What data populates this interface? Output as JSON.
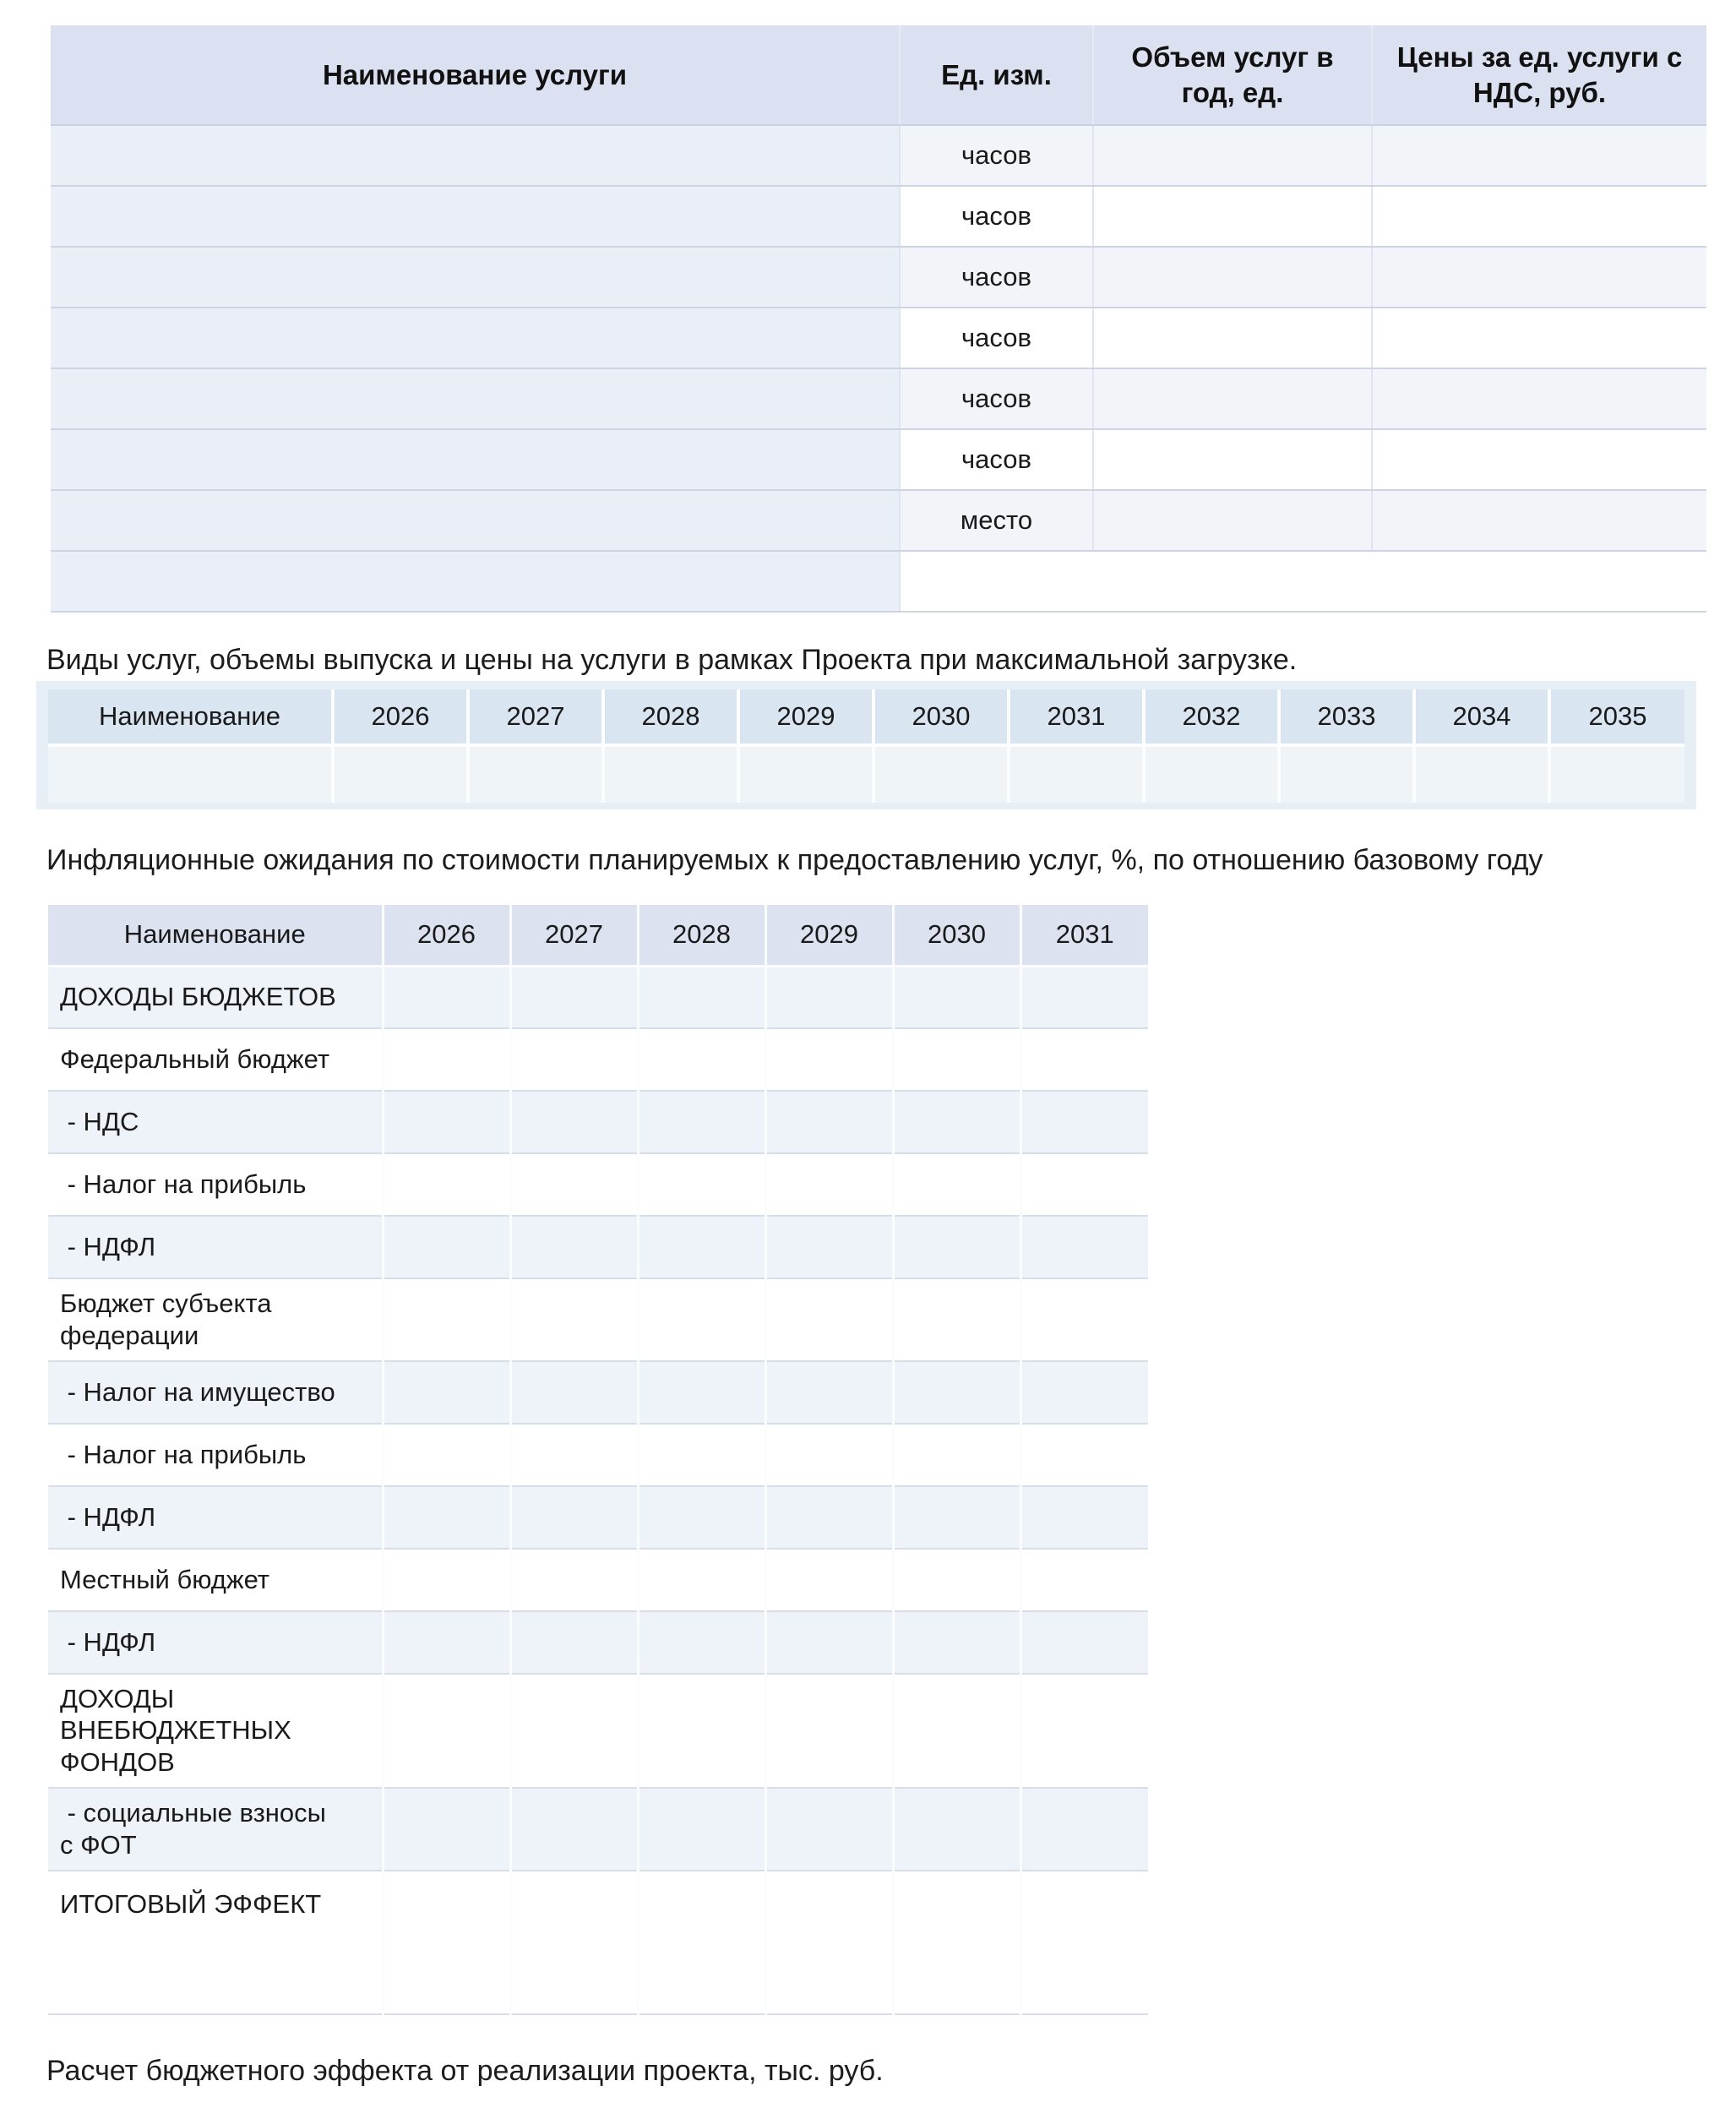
{
  "colors": {
    "table1_header_bg": "#dbe1f0",
    "table1_first_col_bg": "#e9eef7",
    "table1_alt_row_bg": "#f1f5fa",
    "table2_header_bg": "#d9e5f1",
    "table2_body_bg": "#eff4f9",
    "table2_frame_bg": "#e6eff6",
    "table3_header_bg": "#dce2f0",
    "table3_alt_row_bg": "#eef2f9",
    "row_border": "#cdd5e4",
    "text": "#1a1a1a"
  },
  "captions": {
    "services": "Виды услуг, объемы выпуска и цены на услуги в рамках Проекта при максимальной загрузке.",
    "inflation": "Инфляционные ожидания по стоимости планируемых к предоставлению услуг, %, по отношению базовому году",
    "budget": "Расчет бюджетного эффекта от реализации проекта, тыс. руб."
  },
  "table1": {
    "headers": [
      "Наименование услуги",
      "Ед. изм.",
      "Объем услуг в год, ед.",
      "Цены за ед. услуги с НДС, руб."
    ],
    "rows": [
      {
        "name": "",
        "unit": "часов",
        "volume": "",
        "price": ""
      },
      {
        "name": "",
        "unit": "часов",
        "volume": "",
        "price": ""
      },
      {
        "name": "",
        "unit": "часов",
        "volume": "",
        "price": ""
      },
      {
        "name": "",
        "unit": "часов",
        "volume": "",
        "price": ""
      },
      {
        "name": "",
        "unit": "часов",
        "volume": "",
        "price": ""
      },
      {
        "name": "",
        "unit": "часов",
        "volume": "",
        "price": ""
      },
      {
        "name": "",
        "unit": "место",
        "volume": "",
        "price": ""
      }
    ],
    "last_row": {
      "name": "",
      "merged": ""
    }
  },
  "table2": {
    "name_header": "Наименование",
    "years": [
      "2026",
      "2027",
      "2028",
      "2029",
      "2030",
      "2031",
      "2032",
      "2033",
      "2034",
      "2035"
    ],
    "row": {
      "name": "",
      "values": [
        "",
        "",
        "",
        "",
        "",
        "",
        "",
        "",
        "",
        ""
      ]
    }
  },
  "table3": {
    "name_header": "Наименование",
    "years": [
      "2026",
      "2027",
      "2028",
      "2029",
      "2030",
      "2031"
    ],
    "rows": [
      {
        "label": "ДОХОДЫ БЮДЖЕТОВ",
        "values": [
          "",
          "",
          "",
          "",
          "",
          ""
        ]
      },
      {
        "label": "Федеральный бюджет",
        "values": [
          "",
          "",
          "",
          "",
          "",
          ""
        ]
      },
      {
        "label": " - НДС",
        "values": [
          "",
          "",
          "",
          "",
          "",
          ""
        ]
      },
      {
        "label": " - Налог на прибыль",
        "values": [
          "",
          "",
          "",
          "",
          "",
          ""
        ]
      },
      {
        "label": " - НДФЛ",
        "values": [
          "",
          "",
          "",
          "",
          "",
          ""
        ]
      },
      {
        "label": "Бюджет субъекта\nфедерации",
        "values": [
          "",
          "",
          "",
          "",
          "",
          ""
        ]
      },
      {
        "label": " - Налог на имущество",
        "values": [
          "",
          "",
          "",
          "",
          "",
          ""
        ]
      },
      {
        "label": " - Налог на прибыль",
        "values": [
          "",
          "",
          "",
          "",
          "",
          ""
        ]
      },
      {
        "label": " - НДФЛ",
        "values": [
          "",
          "",
          "",
          "",
          "",
          ""
        ]
      },
      {
        "label": "Местный бюджет",
        "values": [
          "",
          "",
          "",
          "",
          "",
          ""
        ]
      },
      {
        "label": " - НДФЛ",
        "values": [
          "",
          "",
          "",
          "",
          "",
          ""
        ]
      },
      {
        "label": "ДОХОДЫ\nВНЕБЮДЖЕТНЫХ\nФОНДОВ",
        "values": [
          "",
          "",
          "",
          "",
          "",
          ""
        ]
      },
      {
        "label": " - социальные взносы\nс ФОТ",
        "values": [
          "",
          "",
          "",
          "",
          "",
          ""
        ]
      },
      {
        "label": "ИТОГОВЫЙ ЭФФЕКТ",
        "values": [
          "",
          "",
          "",
          "",
          "",
          ""
        ]
      }
    ]
  }
}
